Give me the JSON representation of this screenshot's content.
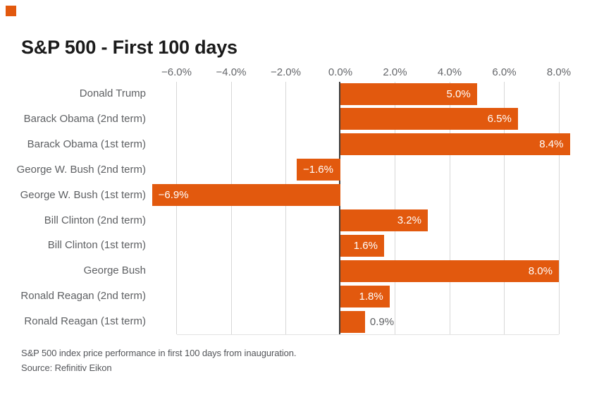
{
  "brand": {
    "logo_color": "#E2590E"
  },
  "header": {
    "title": "S&P 500 - First 100 days"
  },
  "chart_data": {
    "type": "bar",
    "orientation": "horizontal",
    "title": "S&P 500 - First 100 days",
    "xlabel": "",
    "ylabel": "",
    "xlim": [
      -7.05,
      9.0
    ],
    "grid": true,
    "bar_color": "#E2590E",
    "categories": [
      "Donald Trump",
      "Barack Obama (2nd term)",
      "Barack Obama (1st term)",
      "George W. Bush (2nd term)",
      "George W. Bush (1st term)",
      "Bill Clinton (2nd term)",
      "Bill Clinton (1st term)",
      "George Bush",
      "Ronald Reagan (2nd term)",
      "Ronald Reagan (1st term)"
    ],
    "values": [
      5.0,
      6.5,
      8.4,
      -1.6,
      -6.9,
      3.2,
      1.6,
      8.0,
      1.8,
      0.9
    ],
    "value_labels": [
      "5.0%",
      "6.5%",
      "8.4%",
      "−1.6%",
      "−6.9%",
      "3.2%",
      "1.6%",
      "8.0%",
      "1.8%",
      "0.9%"
    ],
    "value_label_placement": [
      "inside",
      "inside",
      "inside",
      "inside",
      "inside",
      "inside",
      "inside",
      "inside",
      "inside",
      "outside"
    ],
    "x_ticks": [
      {
        "value": -6,
        "label": "−6.0%"
      },
      {
        "value": -4,
        "label": "−4.0%"
      },
      {
        "value": -2,
        "label": "−2.0%"
      },
      {
        "value": 0,
        "label": "0.0%"
      },
      {
        "value": 2,
        "label": "2.0%"
      },
      {
        "value": 4,
        "label": "4.0%"
      },
      {
        "value": 6,
        "label": "6.0%"
      },
      {
        "value": 8,
        "label": "8.0%"
      }
    ]
  },
  "footer": {
    "note": "S&P 500 index price performance in first 100 days from inauguration.",
    "source": "Source: Refinitiv Eikon"
  }
}
